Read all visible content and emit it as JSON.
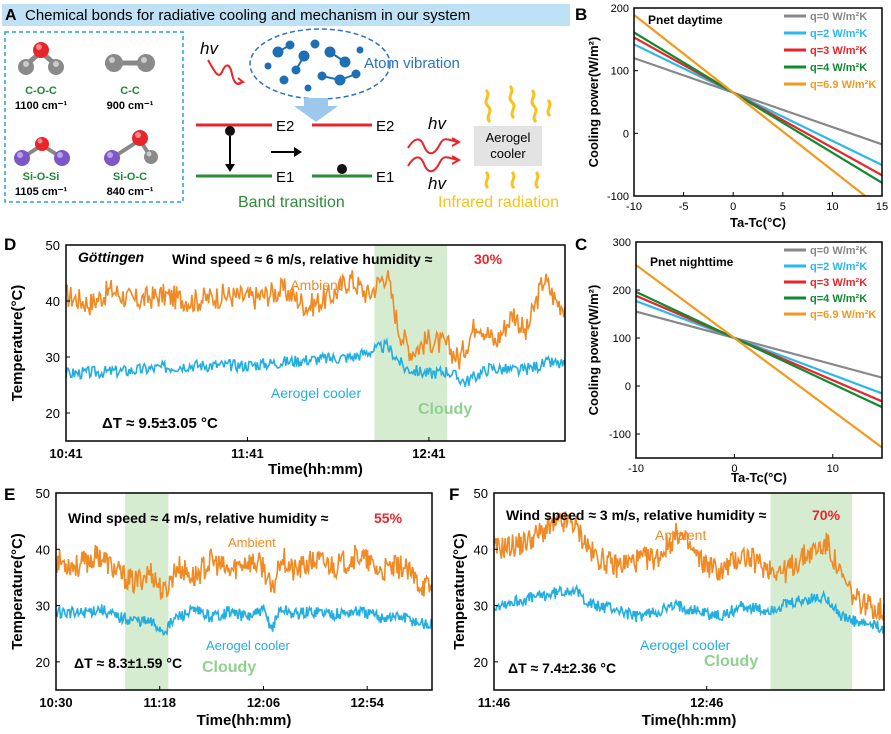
{
  "colors": {
    "ambient": "#f08a24",
    "aerogel": "#23aee0",
    "cloudy_shade": "#cfe9c8",
    "cloudy_text": "#8fd18f",
    "red": "#e8262a",
    "green": "#1f8a3a",
    "gray": "#888888",
    "lightblue": "#29b9ec",
    "darkgreen": "#0f8a2e",
    "orange": "#f39a1e",
    "panel_a_header_bg": "#bfe1f5",
    "molecule_text": "#1f8a3a",
    "band_green": "#2e8b3a"
  },
  "panel_a": {
    "label": "A",
    "header": "Chemical bonds for radiative cooling and mechanism in our system",
    "molecules": [
      {
        "name": "C-O-C",
        "value": "1100 cm⁻¹"
      },
      {
        "name": "C-C",
        "value": "900 cm⁻¹"
      },
      {
        "name": "Si-O-Si",
        "value": "1105 cm⁻¹"
      },
      {
        "name": "Si-O-C",
        "value": "840 cm⁻¹"
      }
    ],
    "hv": "hv",
    "atom_vibration": "Atom vibration",
    "e2": "E2",
    "e1": "E1",
    "band_transition": "Band transition",
    "device": [
      "Aerogel",
      "cooler"
    ],
    "infrared_radiation": "Infrared radiation"
  },
  "chart_data": [
    {
      "id": "B",
      "type": "line",
      "title": "Pnet daytime",
      "xlabel": "Ta-Tc(°C)",
      "ylabel": "Cooling power(W/m²)",
      "xlim": [
        -10,
        15
      ],
      "ylim": [
        -100,
        200
      ],
      "xticks": [
        "-10",
        "-5",
        "0",
        "5",
        "10",
        "15"
      ],
      "yticks": [
        "200",
        "100",
        "0",
        "-100"
      ],
      "pivot": {
        "x": 0,
        "y": 65
      },
      "series": [
        {
          "name": "q=0 W/m²K",
          "slope": -5.5,
          "color": "gray"
        },
        {
          "name": "q=2 W/m²K",
          "slope": -7.7,
          "color": "lightblue"
        },
        {
          "name": "q=3 W/m²K",
          "slope": -8.8,
          "color": "red"
        },
        {
          "name": "q=4 W/m²K",
          "slope": -9.6,
          "color": "darkgreen"
        },
        {
          "name": "q=6.9 W/m²K",
          "slope": -12.4,
          "color": "orange"
        }
      ]
    },
    {
      "id": "C",
      "type": "line",
      "title": "Pnet nighttime",
      "xlabel": "Ta-Tc(°C)",
      "ylabel": "Cooling power(W/m²)",
      "xlim": [
        -10,
        15
      ],
      "ylim": [
        -150,
        300
      ],
      "xticks": [
        "-10",
        "0",
        "10"
      ],
      "yticks": [
        "300",
        "200",
        "100",
        "0",
        "-100"
      ],
      "pivot": {
        "x": 0,
        "y": 100
      },
      "series": [
        {
          "name": "q=0 W/m²K",
          "slope": -5.5,
          "color": "gray"
        },
        {
          "name": "q=2 W/m²K",
          "slope": -7.7,
          "color": "lightblue"
        },
        {
          "name": "q=3 W/m²K",
          "slope": -8.8,
          "color": "red"
        },
        {
          "name": "q=4 W/m²K",
          "slope": -9.6,
          "color": "darkgreen"
        },
        {
          "name": "q=6.9 W/m²K",
          "slope": -15.2,
          "color": "orange"
        }
      ]
    },
    {
      "id": "D",
      "type": "line",
      "location": "Göttingen",
      "conditions": "Wind speed ≈ 6 m/s, relative humidity ≈",
      "humidity": "30%",
      "xlabel": "Time(hh:mm)",
      "ylabel": "Temperature(°C)",
      "ylim": [
        15,
        50
      ],
      "yticks": [
        "50",
        "40",
        "30",
        "20"
      ],
      "xticks": [
        "10:41",
        "11:41",
        "12:41"
      ],
      "tmin": 0,
      "tmax": 165,
      "tick_minutes": [
        0,
        60,
        120
      ],
      "cloudy": [
        102,
        126
      ],
      "ambient_label": "Ambient",
      "aerogel_label": "Aerogel cooler",
      "cloudy_label": "Cloudy",
      "delta": "ΔT ≈ 9.5±3.05 °C",
      "ambient": [
        [
          0,
          41
        ],
        [
          8,
          39.5
        ],
        [
          15,
          42
        ],
        [
          22,
          40
        ],
        [
          32,
          41
        ],
        [
          42,
          40
        ],
        [
          52,
          41
        ],
        [
          62,
          40.5
        ],
        [
          72,
          42
        ],
        [
          80,
          39
        ],
        [
          88,
          41
        ],
        [
          94,
          44
        ],
        [
          100,
          41
        ],
        [
          106,
          45
        ],
        [
          110,
          35
        ],
        [
          114,
          31
        ],
        [
          120,
          33
        ],
        [
          126,
          32
        ],
        [
          130,
          29.5
        ],
        [
          136,
          36.5
        ],
        [
          142,
          32.5
        ],
        [
          148,
          38
        ],
        [
          152,
          34
        ],
        [
          158,
          44
        ],
        [
          162,
          40
        ],
        [
          165,
          39
        ]
      ],
      "aerogel": [
        [
          0,
          27
        ],
        [
          20,
          27.5
        ],
        [
          40,
          28.5
        ],
        [
          60,
          28.5
        ],
        [
          80,
          29.5
        ],
        [
          95,
          30
        ],
        [
          106,
          32
        ],
        [
          112,
          28
        ],
        [
          120,
          27
        ],
        [
          126,
          27.5
        ],
        [
          132,
          25.5
        ],
        [
          140,
          28
        ],
        [
          150,
          27.5
        ],
        [
          160,
          29
        ],
        [
          165,
          28.5
        ]
      ]
    },
    {
      "id": "E",
      "type": "line",
      "conditions": "Wind speed ≈ 4 m/s, relative humidity ≈",
      "humidity": "55%",
      "xlabel": "Time(hh:mm)",
      "ylabel": "Temperature(°C)",
      "ylim": [
        15,
        50
      ],
      "yticks": [
        "50",
        "40",
        "30",
        "20"
      ],
      "xticks": [
        "10:30",
        "11:18",
        "12:06",
        "12:54"
      ],
      "tmin": 0,
      "tmax": 174,
      "tick_minutes": [
        0,
        48,
        96,
        144
      ],
      "cloudy": [
        32,
        52
      ],
      "ambient_label": "Ambient",
      "aerogel_label": "Aerogel cooler",
      "cloudy_label": "Cloudy",
      "delta": "ΔT ≈ 8.3±1.59 °C",
      "ambient": [
        [
          0,
          38
        ],
        [
          10,
          37
        ],
        [
          20,
          39
        ],
        [
          28,
          36
        ],
        [
          36,
          34
        ],
        [
          44,
          36
        ],
        [
          50,
          32
        ],
        [
          56,
          37
        ],
        [
          64,
          35
        ],
        [
          72,
          38
        ],
        [
          80,
          36
        ],
        [
          88,
          38
        ],
        [
          96,
          37
        ],
        [
          100,
          32
        ],
        [
          104,
          39
        ],
        [
          110,
          36
        ],
        [
          120,
          38
        ],
        [
          130,
          37
        ],
        [
          140,
          39
        ],
        [
          150,
          36
        ],
        [
          160,
          37
        ],
        [
          168,
          34
        ],
        [
          174,
          33
        ]
      ],
      "aerogel": [
        [
          0,
          29
        ],
        [
          10,
          28.5
        ],
        [
          20,
          29.5
        ],
        [
          28,
          28
        ],
        [
          36,
          27.5
        ],
        [
          44,
          27
        ],
        [
          50,
          25.5
        ],
        [
          56,
          28
        ],
        [
          64,
          29
        ],
        [
          72,
          28
        ],
        [
          80,
          29
        ],
        [
          88,
          28
        ],
        [
          96,
          29
        ],
        [
          100,
          26
        ],
        [
          104,
          29.5
        ],
        [
          110,
          28.5
        ],
        [
          120,
          29
        ],
        [
          130,
          28.5
        ],
        [
          140,
          29
        ],
        [
          150,
          28
        ],
        [
          160,
          28
        ],
        [
          168,
          27
        ],
        [
          174,
          26.5
        ]
      ]
    },
    {
      "id": "F",
      "type": "line",
      "conditions": "Wind speed ≈ 3 m/s, relative humidity ≈",
      "humidity": "70%",
      "xlabel": "Time(hh:mm)",
      "ylabel": "Temperature(°C)",
      "ylim": [
        15,
        50
      ],
      "yticks": [
        "50",
        "40",
        "30",
        "20"
      ],
      "xticks": [
        "11:46",
        "12:46"
      ],
      "tmin": 0,
      "tmax": 110,
      "tick_minutes": [
        0,
        60
      ],
      "cloudy": [
        78,
        101
      ],
      "ambient_label": "Ambient",
      "aerogel_label": "Aerogel cooler",
      "cloudy_label": "Cloudy",
      "delta": "ΔT ≈ 7.4±2.36 °C",
      "ambient": [
        [
          0,
          40
        ],
        [
          8,
          41
        ],
        [
          16,
          44
        ],
        [
          22,
          45
        ],
        [
          28,
          39
        ],
        [
          34,
          37
        ],
        [
          40,
          38
        ],
        [
          46,
          38.5
        ],
        [
          52,
          43
        ],
        [
          58,
          38
        ],
        [
          64,
          36
        ],
        [
          70,
          39
        ],
        [
          76,
          37
        ],
        [
          82,
          36
        ],
        [
          88,
          39
        ],
        [
          94,
          41
        ],
        [
          98,
          35
        ],
        [
          102,
          31
        ],
        [
          106,
          30
        ],
        [
          110,
          29
        ]
      ],
      "aerogel": [
        [
          0,
          30
        ],
        [
          8,
          31
        ],
        [
          16,
          32
        ],
        [
          22,
          33
        ],
        [
          28,
          30
        ],
        [
          34,
          29.5
        ],
        [
          40,
          28
        ],
        [
          46,
          29
        ],
        [
          52,
          30
        ],
        [
          58,
          29
        ],
        [
          64,
          28
        ],
        [
          70,
          30
        ],
        [
          76,
          29
        ],
        [
          82,
          30
        ],
        [
          88,
          31
        ],
        [
          94,
          31.5
        ],
        [
          98,
          28
        ],
        [
          102,
          27
        ],
        [
          106,
          26.5
        ],
        [
          110,
          26
        ]
      ]
    }
  ]
}
